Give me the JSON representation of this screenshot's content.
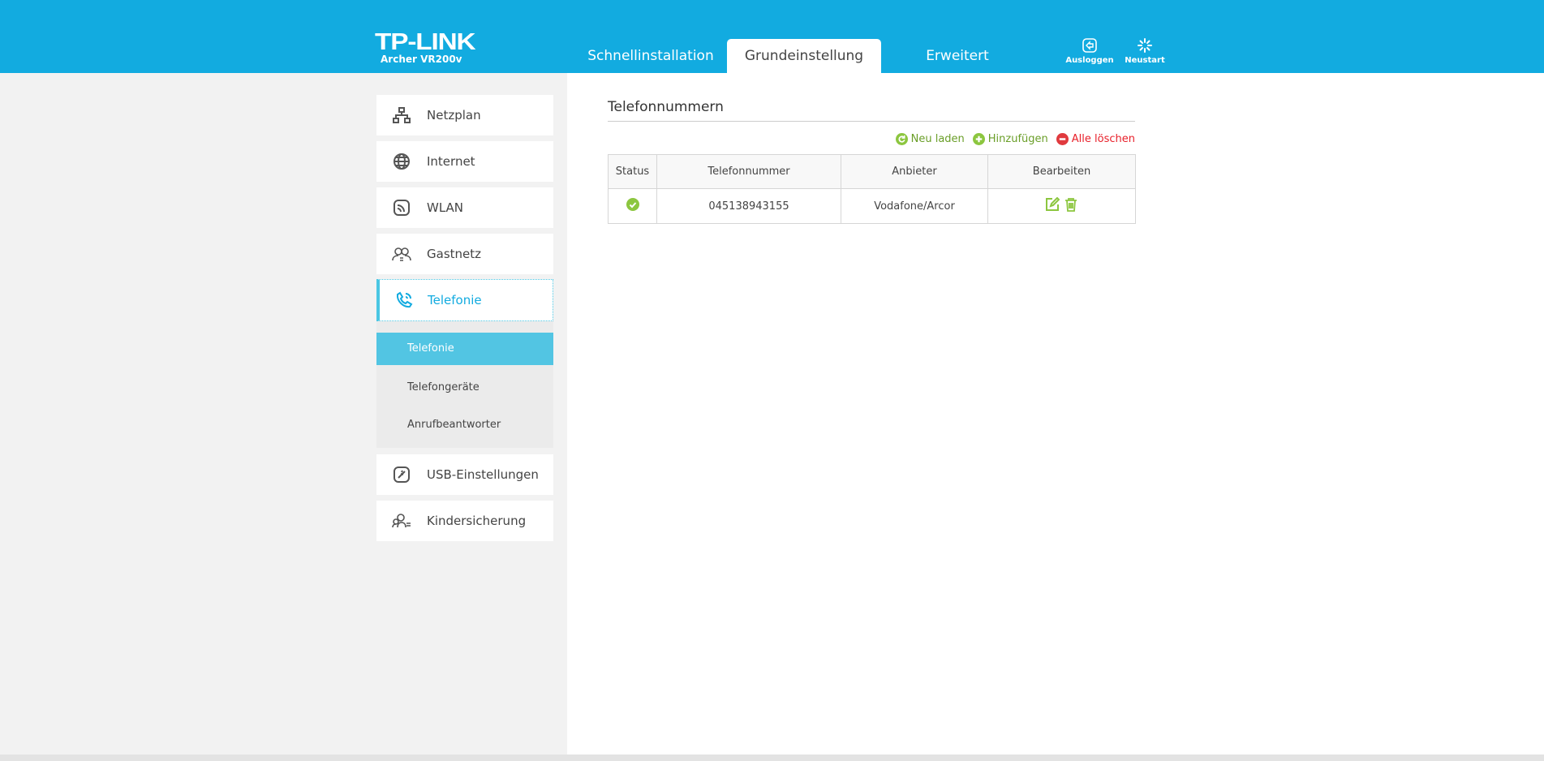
{
  "header": {
    "brand": "TP-LINK",
    "model": "Archer VR200v",
    "tabs": [
      "Schnellinstallation",
      "Grundeinstellung",
      "Erweitert"
    ],
    "active_tab": "Grundeinstellung",
    "logout": "Ausloggen",
    "restart": "Neustart"
  },
  "sidebar": {
    "items": [
      {
        "label": "Netzplan",
        "icon": "network-map-icon"
      },
      {
        "label": "Internet",
        "icon": "globe-icon"
      },
      {
        "label": "WLAN",
        "icon": "wireless-icon"
      },
      {
        "label": "Gastnetz",
        "icon": "guest-network-icon"
      },
      {
        "label": "Telefonie",
        "icon": "phone-icon"
      },
      {
        "label": "USB-Einstellungen",
        "icon": "usb-icon"
      },
      {
        "label": "Kindersicherung",
        "icon": "parental-control-icon"
      }
    ],
    "submenu": [
      "Telefonie",
      "Telefongeräte",
      "Anrufbeantworter"
    ],
    "active": "Telefonie"
  },
  "main": {
    "title": "Telefonnummern",
    "actions": {
      "reload": "Neu laden",
      "add": "Hinzufügen",
      "delete_all": "Alle löschen"
    },
    "table": {
      "headers": [
        "Status",
        "Telefonnummer",
        "Anbieter",
        "Bearbeiten"
      ],
      "rows": [
        {
          "status": "active",
          "number": "045138943155",
          "provider": "Vodafone/Arcor"
        }
      ]
    }
  },
  "colors": {
    "header": "#12abe0",
    "accent": "#52c5e3",
    "green": "#8cc63f",
    "red": "#e8202a"
  }
}
